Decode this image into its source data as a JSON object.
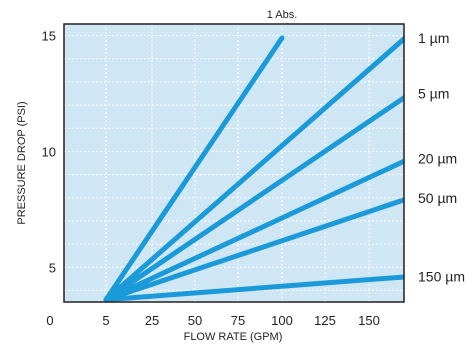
{
  "chart_data": {
    "type": "line",
    "title": "",
    "xlabel": "FLOW RATE (GPM)",
    "ylabel": "PRESSURE DROP (PSI)",
    "xlim": [
      0,
      175
    ],
    "ylim": [
      3.5,
      15.5
    ],
    "x_ticks": [
      0,
      5,
      25,
      50,
      75,
      100,
      125,
      150
    ],
    "x_tick_labels": [
      "0",
      "5",
      "25",
      "50",
      "75",
      "100",
      "125",
      "150"
    ],
    "y_ticks": [
      5,
      10,
      15
    ],
    "y_tick_labels": [
      "5",
      "10",
      "15"
    ],
    "grid": true,
    "colors": {
      "plot_bg": "#cfe6f5",
      "grid": "#ffffff",
      "line": "#1a9ad9",
      "frame": "#231f20"
    },
    "series": [
      {
        "name": "1 Abs.",
        "x": [
          5,
          100
        ],
        "y": [
          3.6,
          14.9
        ]
      },
      {
        "name": "1 µm",
        "x": [
          5,
          171
        ],
        "y": [
          3.6,
          14.9
        ]
      },
      {
        "name": "5 µm",
        "x": [
          5,
          174
        ],
        "y": [
          3.6,
          12.5
        ]
      },
      {
        "name": "20 µm",
        "x": [
          5,
          174
        ],
        "y": [
          3.6,
          9.7
        ]
      },
      {
        "name": "50 µm",
        "x": [
          5,
          174
        ],
        "y": [
          3.6,
          8.0
        ]
      },
      {
        "name": "150 µm",
        "x": [
          5,
          174
        ],
        "y": [
          3.6,
          4.6
        ]
      }
    ]
  }
}
